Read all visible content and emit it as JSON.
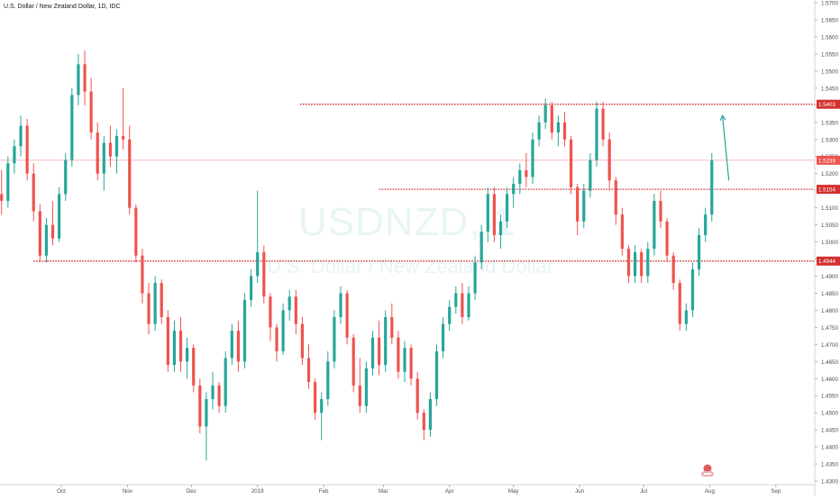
{
  "header": {
    "symbol_line": "U.S. Dollar / New Zealand Dollar, 1D, IDC"
  },
  "watermark": {
    "ticker": "USDNZD, 1",
    "name": "U.S. Dollar / New Zealand Dollar"
  },
  "colors": {
    "up": "#26a69a",
    "down": "#ef5350",
    "level_line": "#d32f2f",
    "last_line": "#f4a4a4",
    "arrow": "#26a69a"
  },
  "chart_data": {
    "type": "candlestick",
    "title": "",
    "y_axis": {
      "ylim": [
        1.4258,
        1.5708
      ],
      "ticks": [
        "1.5700",
        "1.5650",
        "1.5600",
        "1.5550",
        "1.5500",
        "1.5450",
        "1.5400",
        "1.5350",
        "1.5300",
        "1.5250",
        "1.5200",
        "1.5150",
        "1.5100",
        "1.5050",
        "1.5000",
        "1.4950",
        "1.4900",
        "1.4850",
        "1.4800",
        "1.4750",
        "1.4700",
        "1.4650",
        "1.4600",
        "1.4550",
        "1.4500",
        "1.4450",
        "1.4400",
        "1.4350",
        "1.4300",
        "1.4250"
      ]
    },
    "x_axis": {
      "labels": [
        {
          "label": "Sep",
          "x": "2018-09-01"
        },
        {
          "label": "Oct",
          "x": "2018-10-01"
        },
        {
          "label": "Nov",
          "x": "2018-11-01"
        },
        {
          "label": "Dec",
          "x": "2018-12-01"
        },
        {
          "label": "2019",
          "x": "2019-01-01"
        },
        {
          "label": "Feb",
          "x": "2019-02-01"
        },
        {
          "label": "Mar",
          "x": "2019-03-01"
        },
        {
          "label": "Apr",
          "x": "2019-04-01"
        },
        {
          "label": "May",
          "x": "2019-05-01"
        },
        {
          "label": "Jun",
          "x": "2019-06-01"
        },
        {
          "label": "Jul",
          "x": "2019-07-01"
        },
        {
          "label": "Aug",
          "x": "2019-08-01"
        },
        {
          "label": "Sep",
          "x": "2019-09-01"
        }
      ],
      "range": [
        "2018-09-01",
        "2019-09-18"
      ]
    },
    "price_levels": [
      {
        "value": 1.5403,
        "label": "1.5403",
        "from": "2019-01-21"
      },
      {
        "value": 1.5154,
        "label": "1.5154",
        "from": "2019-02-27"
      },
      {
        "value": 1.4944,
        "label": "1.4944",
        "from": "2018-09-18"
      }
    ],
    "last_price": {
      "value": 1.5239,
      "label": "1.5239"
    },
    "projection_arrow": {
      "from": [
        "2019-08-10",
        1.518
      ],
      "to": [
        "2019-08-07",
        1.537
      ]
    },
    "candles": [
      {
        "x": "2018-09-03",
        "o": 1.514,
        "h": 1.521,
        "l": 1.508,
        "c": 1.512
      },
      {
        "x": "2018-09-06",
        "o": 1.512,
        "h": 1.525,
        "l": 1.51,
        "c": 1.523
      },
      {
        "x": "2018-09-09",
        "o": 1.523,
        "h": 1.53,
        "l": 1.52,
        "c": 1.528
      },
      {
        "x": "2018-09-12",
        "o": 1.528,
        "h": 1.537,
        "l": 1.525,
        "c": 1.534
      },
      {
        "x": "2018-09-15",
        "o": 1.534,
        "h": 1.536,
        "l": 1.518,
        "c": 1.52
      },
      {
        "x": "2018-09-18",
        "o": 1.52,
        "h": 1.523,
        "l": 1.506,
        "c": 1.509
      },
      {
        "x": "2018-09-21",
        "o": 1.509,
        "h": 1.511,
        "l": 1.494,
        "c": 1.496
      },
      {
        "x": "2018-09-24",
        "o": 1.496,
        "h": 1.507,
        "l": 1.494,
        "c": 1.505
      },
      {
        "x": "2018-09-27",
        "o": 1.505,
        "h": 1.512,
        "l": 1.499,
        "c": 1.501
      },
      {
        "x": "2018-09-30",
        "o": 1.501,
        "h": 1.516,
        "l": 1.5,
        "c": 1.514
      },
      {
        "x": "2018-10-03",
        "o": 1.514,
        "h": 1.526,
        "l": 1.512,
        "c": 1.524
      },
      {
        "x": "2018-10-06",
        "o": 1.524,
        "h": 1.545,
        "l": 1.522,
        "c": 1.543
      },
      {
        "x": "2018-10-09",
        "o": 1.543,
        "h": 1.555,
        "l": 1.54,
        "c": 1.552
      },
      {
        "x": "2018-10-12",
        "o": 1.552,
        "h": 1.556,
        "l": 1.54,
        "c": 1.544
      },
      {
        "x": "2018-10-15",
        "o": 1.544,
        "h": 1.548,
        "l": 1.53,
        "c": 1.532
      },
      {
        "x": "2018-10-18",
        "o": 1.532,
        "h": 1.535,
        "l": 1.518,
        "c": 1.52
      },
      {
        "x": "2018-10-21",
        "o": 1.52,
        "h": 1.531,
        "l": 1.515,
        "c": 1.529
      },
      {
        "x": "2018-10-24",
        "o": 1.529,
        "h": 1.534,
        "l": 1.522,
        "c": 1.525
      },
      {
        "x": "2018-10-27",
        "o": 1.525,
        "h": 1.533,
        "l": 1.52,
        "c": 1.531
      },
      {
        "x": "2018-10-30",
        "o": 1.531,
        "h": 1.545,
        "l": 1.527,
        "c": 1.53
      },
      {
        "x": "2018-11-02",
        "o": 1.53,
        "h": 1.534,
        "l": 1.508,
        "c": 1.51
      },
      {
        "x": "2018-11-05",
        "o": 1.51,
        "h": 1.511,
        "l": 1.494,
        "c": 1.496
      },
      {
        "x": "2018-11-08",
        "o": 1.496,
        "h": 1.498,
        "l": 1.482,
        "c": 1.485
      },
      {
        "x": "2018-11-11",
        "o": 1.485,
        "h": 1.488,
        "l": 1.473,
        "c": 1.476
      },
      {
        "x": "2018-11-14",
        "o": 1.476,
        "h": 1.49,
        "l": 1.474,
        "c": 1.488
      },
      {
        "x": "2018-11-17",
        "o": 1.488,
        "h": 1.489,
        "l": 1.476,
        "c": 1.478
      },
      {
        "x": "2018-11-20",
        "o": 1.478,
        "h": 1.48,
        "l": 1.462,
        "c": 1.464
      },
      {
        "x": "2018-11-23",
        "o": 1.464,
        "h": 1.477,
        "l": 1.462,
        "c": 1.474
      },
      {
        "x": "2018-11-26",
        "o": 1.474,
        "h": 1.478,
        "l": 1.462,
        "c": 1.465
      },
      {
        "x": "2018-11-29",
        "o": 1.465,
        "h": 1.472,
        "l": 1.46,
        "c": 1.469
      },
      {
        "x": "2018-12-02",
        "o": 1.469,
        "h": 1.47,
        "l": 1.456,
        "c": 1.458
      },
      {
        "x": "2018-12-05",
        "o": 1.458,
        "h": 1.46,
        "l": 1.444,
        "c": 1.446
      },
      {
        "x": "2018-12-08",
        "o": 1.446,
        "h": 1.456,
        "l": 1.436,
        "c": 1.454
      },
      {
        "x": "2018-12-11",
        "o": 1.454,
        "h": 1.462,
        "l": 1.451,
        "c": 1.458
      },
      {
        "x": "2018-12-14",
        "o": 1.458,
        "h": 1.459,
        "l": 1.45,
        "c": 1.452
      },
      {
        "x": "2018-12-17",
        "o": 1.452,
        "h": 1.468,
        "l": 1.45,
        "c": 1.466
      },
      {
        "x": "2018-12-20",
        "o": 1.466,
        "h": 1.476,
        "l": 1.464,
        "c": 1.474
      },
      {
        "x": "2018-12-23",
        "o": 1.474,
        "h": 1.477,
        "l": 1.462,
        "c": 1.465
      },
      {
        "x": "2018-12-26",
        "o": 1.465,
        "h": 1.485,
        "l": 1.463,
        "c": 1.483
      },
      {
        "x": "2018-12-29",
        "o": 1.483,
        "h": 1.492,
        "l": 1.481,
        "c": 1.49
      },
      {
        "x": "2019-01-01",
        "o": 1.49,
        "h": 1.515,
        "l": 1.488,
        "c": 1.497
      },
      {
        "x": "2019-01-04",
        "o": 1.497,
        "h": 1.499,
        "l": 1.482,
        "c": 1.484
      },
      {
        "x": "2019-01-07",
        "o": 1.484,
        "h": 1.485,
        "l": 1.471,
        "c": 1.475
      },
      {
        "x": "2019-01-10",
        "o": 1.475,
        "h": 1.476,
        "l": 1.465,
        "c": 1.468
      },
      {
        "x": "2019-01-13",
        "o": 1.468,
        "h": 1.482,
        "l": 1.467,
        "c": 1.48
      },
      {
        "x": "2019-01-16",
        "o": 1.48,
        "h": 1.486,
        "l": 1.477,
        "c": 1.484
      },
      {
        "x": "2019-01-19",
        "o": 1.484,
        "h": 1.486,
        "l": 1.473,
        "c": 1.476
      },
      {
        "x": "2019-01-22",
        "o": 1.476,
        "h": 1.478,
        "l": 1.464,
        "c": 1.466
      },
      {
        "x": "2019-01-25",
        "o": 1.466,
        "h": 1.47,
        "l": 1.457,
        "c": 1.459
      },
      {
        "x": "2019-01-28",
        "o": 1.459,
        "h": 1.46,
        "l": 1.448,
        "c": 1.45
      },
      {
        "x": "2019-01-31",
        "o": 1.45,
        "h": 1.456,
        "l": 1.442,
        "c": 1.454
      },
      {
        "x": "2019-02-03",
        "o": 1.454,
        "h": 1.468,
        "l": 1.452,
        "c": 1.465
      },
      {
        "x": "2019-02-06",
        "o": 1.465,
        "h": 1.48,
        "l": 1.463,
        "c": 1.478
      },
      {
        "x": "2019-02-09",
        "o": 1.478,
        "h": 1.487,
        "l": 1.476,
        "c": 1.485
      },
      {
        "x": "2019-02-12",
        "o": 1.485,
        "h": 1.486,
        "l": 1.47,
        "c": 1.472
      },
      {
        "x": "2019-02-15",
        "o": 1.472,
        "h": 1.473,
        "l": 1.456,
        "c": 1.458
      },
      {
        "x": "2019-02-18",
        "o": 1.458,
        "h": 1.466,
        "l": 1.45,
        "c": 1.452
      },
      {
        "x": "2019-02-21",
        "o": 1.452,
        "h": 1.465,
        "l": 1.45,
        "c": 1.463
      },
      {
        "x": "2019-02-24",
        "o": 1.463,
        "h": 1.474,
        "l": 1.461,
        "c": 1.472
      },
      {
        "x": "2019-02-27",
        "o": 1.472,
        "h": 1.477,
        "l": 1.461,
        "c": 1.464
      },
      {
        "x": "2019-03-02",
        "o": 1.464,
        "h": 1.48,
        "l": 1.462,
        "c": 1.478
      },
      {
        "x": "2019-03-05",
        "o": 1.478,
        "h": 1.482,
        "l": 1.47,
        "c": 1.472
      },
      {
        "x": "2019-03-08",
        "o": 1.472,
        "h": 1.474,
        "l": 1.46,
        "c": 1.462
      },
      {
        "x": "2019-03-11",
        "o": 1.462,
        "h": 1.471,
        "l": 1.459,
        "c": 1.469
      },
      {
        "x": "2019-03-14",
        "o": 1.469,
        "h": 1.47,
        "l": 1.458,
        "c": 1.46
      },
      {
        "x": "2019-03-17",
        "o": 1.46,
        "h": 1.462,
        "l": 1.448,
        "c": 1.45
      },
      {
        "x": "2019-03-20",
        "o": 1.45,
        "h": 1.451,
        "l": 1.442,
        "c": 1.445
      },
      {
        "x": "2019-03-23",
        "o": 1.445,
        "h": 1.456,
        "l": 1.443,
        "c": 1.454
      },
      {
        "x": "2019-03-26",
        "o": 1.454,
        "h": 1.47,
        "l": 1.452,
        "c": 1.468
      },
      {
        "x": "2019-03-29",
        "o": 1.468,
        "h": 1.478,
        "l": 1.466,
        "c": 1.476
      },
      {
        "x": "2019-04-01",
        "o": 1.476,
        "h": 1.483,
        "l": 1.474,
        "c": 1.481
      },
      {
        "x": "2019-04-04",
        "o": 1.481,
        "h": 1.487,
        "l": 1.479,
        "c": 1.485
      },
      {
        "x": "2019-04-07",
        "o": 1.485,
        "h": 1.488,
        "l": 1.476,
        "c": 1.478
      },
      {
        "x": "2019-04-10",
        "o": 1.478,
        "h": 1.487,
        "l": 1.477,
        "c": 1.485
      },
      {
        "x": "2019-04-13",
        "o": 1.485,
        "h": 1.496,
        "l": 1.483,
        "c": 1.494
      },
      {
        "x": "2019-04-16",
        "o": 1.494,
        "h": 1.505,
        "l": 1.492,
        "c": 1.503
      },
      {
        "x": "2019-04-19",
        "o": 1.503,
        "h": 1.516,
        "l": 1.5,
        "c": 1.514
      },
      {
        "x": "2019-04-22",
        "o": 1.514,
        "h": 1.516,
        "l": 1.5,
        "c": 1.502
      },
      {
        "x": "2019-04-25",
        "o": 1.502,
        "h": 1.508,
        "l": 1.498,
        "c": 1.506
      },
      {
        "x": "2019-04-28",
        "o": 1.506,
        "h": 1.516,
        "l": 1.504,
        "c": 1.514
      },
      {
        "x": "2019-05-01",
        "o": 1.514,
        "h": 1.519,
        "l": 1.51,
        "c": 1.517
      },
      {
        "x": "2019-05-04",
        "o": 1.517,
        "h": 1.523,
        "l": 1.514,
        "c": 1.521
      },
      {
        "x": "2019-05-07",
        "o": 1.521,
        "h": 1.526,
        "l": 1.516,
        "c": 1.519
      },
      {
        "x": "2019-05-10",
        "o": 1.519,
        "h": 1.532,
        "l": 1.517,
        "c": 1.53
      },
      {
        "x": "2019-05-13",
        "o": 1.53,
        "h": 1.537,
        "l": 1.528,
        "c": 1.535
      },
      {
        "x": "2019-05-16",
        "o": 1.535,
        "h": 1.542,
        "l": 1.533,
        "c": 1.54
      },
      {
        "x": "2019-05-19",
        "o": 1.54,
        "h": 1.541,
        "l": 1.53,
        "c": 1.532
      },
      {
        "x": "2019-05-22",
        "o": 1.532,
        "h": 1.537,
        "l": 1.528,
        "c": 1.535
      },
      {
        "x": "2019-05-25",
        "o": 1.535,
        "h": 1.538,
        "l": 1.528,
        "c": 1.53
      },
      {
        "x": "2019-05-28",
        "o": 1.53,
        "h": 1.531,
        "l": 1.514,
        "c": 1.516
      },
      {
        "x": "2019-05-31",
        "o": 1.516,
        "h": 1.517,
        "l": 1.502,
        "c": 1.506
      },
      {
        "x": "2019-06-03",
        "o": 1.506,
        "h": 1.517,
        "l": 1.504,
        "c": 1.515
      },
      {
        "x": "2019-06-06",
        "o": 1.515,
        "h": 1.526,
        "l": 1.513,
        "c": 1.524
      },
      {
        "x": "2019-06-09",
        "o": 1.524,
        "h": 1.541,
        "l": 1.522,
        "c": 1.539
      },
      {
        "x": "2019-06-12",
        "o": 1.539,
        "h": 1.541,
        "l": 1.528,
        "c": 1.53
      },
      {
        "x": "2019-06-15",
        "o": 1.53,
        "h": 1.532,
        "l": 1.515,
        "c": 1.518
      },
      {
        "x": "2019-06-18",
        "o": 1.518,
        "h": 1.519,
        "l": 1.505,
        "c": 1.508
      },
      {
        "x": "2019-06-21",
        "o": 1.508,
        "h": 1.51,
        "l": 1.496,
        "c": 1.498
      },
      {
        "x": "2019-06-24",
        "o": 1.498,
        "h": 1.499,
        "l": 1.488,
        "c": 1.49
      },
      {
        "x": "2019-06-27",
        "o": 1.49,
        "h": 1.499,
        "l": 1.488,
        "c": 1.497
      },
      {
        "x": "2019-06-30",
        "o": 1.497,
        "h": 1.498,
        "l": 1.488,
        "c": 1.49
      },
      {
        "x": "2019-07-03",
        "o": 1.49,
        "h": 1.5,
        "l": 1.488,
        "c": 1.498
      },
      {
        "x": "2019-07-06",
        "o": 1.498,
        "h": 1.514,
        "l": 1.496,
        "c": 1.512
      },
      {
        "x": "2019-07-09",
        "o": 1.512,
        "h": 1.515,
        "l": 1.504,
        "c": 1.506
      },
      {
        "x": "2019-07-12",
        "o": 1.506,
        "h": 1.507,
        "l": 1.494,
        "c": 1.496
      },
      {
        "x": "2019-07-15",
        "o": 1.496,
        "h": 1.497,
        "l": 1.486,
        "c": 1.488
      },
      {
        "x": "2019-07-18",
        "o": 1.488,
        "h": 1.489,
        "l": 1.474,
        "c": 1.476
      },
      {
        "x": "2019-07-21",
        "o": 1.476,
        "h": 1.482,
        "l": 1.474,
        "c": 1.48
      },
      {
        "x": "2019-07-24",
        "o": 1.48,
        "h": 1.494,
        "l": 1.478,
        "c": 1.492
      },
      {
        "x": "2019-07-27",
        "o": 1.492,
        "h": 1.504,
        "l": 1.49,
        "c": 1.502
      },
      {
        "x": "2019-07-30",
        "o": 1.502,
        "h": 1.51,
        "l": 1.5,
        "c": 1.508
      },
      {
        "x": "2019-08-02",
        "o": 1.508,
        "h": 1.526,
        "l": 1.506,
        "c": 1.5239
      }
    ]
  }
}
